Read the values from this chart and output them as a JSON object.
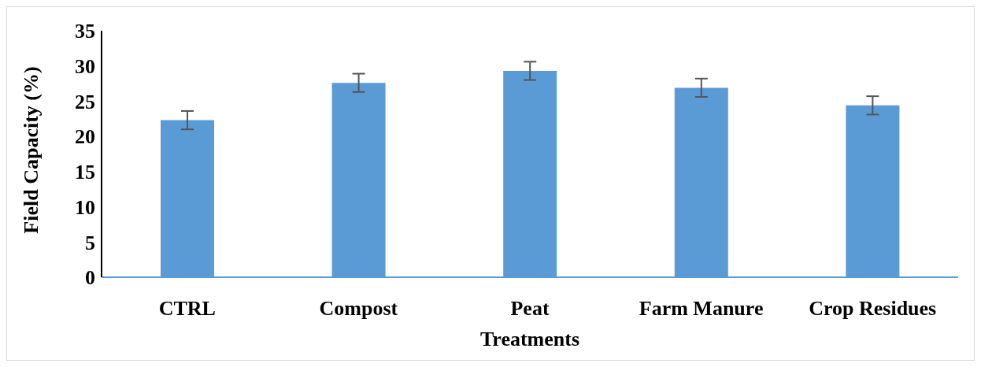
{
  "chart_data": {
    "type": "bar",
    "xlabel": "Treatments",
    "ylabel": "Field Capacity (%)",
    "categories": [
      "CTRL",
      "Compost",
      "Peat",
      "Farm Manure",
      "Crop Residues"
    ],
    "values": [
      22.3,
      27.6,
      29.3,
      26.9,
      24.4
    ],
    "errors": [
      1.3,
      1.3,
      1.3,
      1.3,
      1.3
    ],
    "color": "#5b9bd5",
    "ylim": [
      0,
      35
    ],
    "yticks": [
      0,
      5,
      10,
      15,
      20,
      25,
      30,
      35
    ],
    "grid": false,
    "legend": false
  }
}
